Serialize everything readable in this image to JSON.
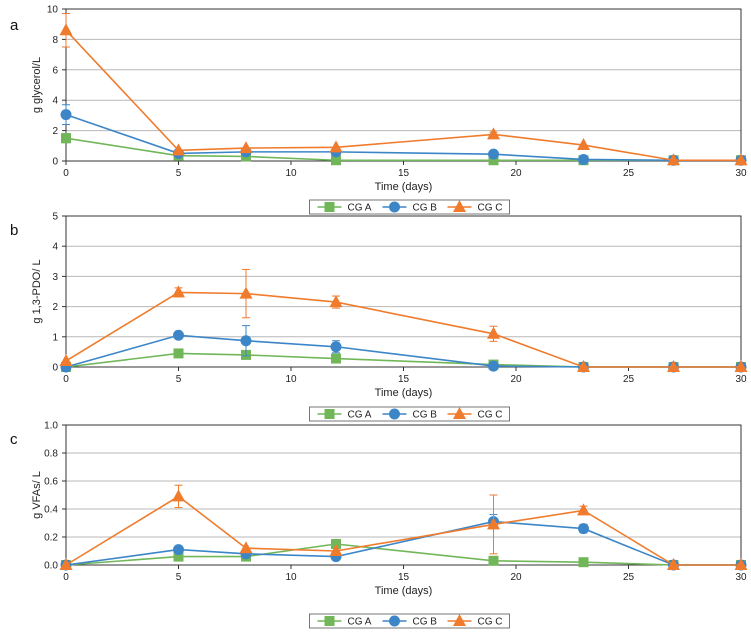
{
  "colors": {
    "CG A": "#71b759",
    "CG B": "#3c86c8",
    "CG C": "#f07b2c",
    "grid": "#b8b8b8",
    "axis": "#333333"
  },
  "chart_data": [
    {
      "type": "line",
      "panel_label": "a",
      "xlabel": "Time (days)",
      "ylabel": "g glycerol/L",
      "xlim": [
        0,
        30
      ],
      "ylim": [
        0,
        10
      ],
      "xticks": [
        0,
        5,
        10,
        15,
        20,
        25,
        30
      ],
      "yticks": [
        0,
        2,
        4,
        6,
        8,
        10
      ],
      "yticklabels": [
        "0",
        "2",
        "4",
        "6",
        "8",
        "10"
      ],
      "grid": true,
      "legend_position": "bottom",
      "series": [
        {
          "name": "CG A",
          "marker": "square",
          "x": [
            0,
            5,
            8,
            12,
            19,
            23,
            27,
            30
          ],
          "y": [
            1.5,
            0.35,
            0.3,
            0.05,
            0.05,
            0.05,
            0.05,
            0.05
          ],
          "err": [
            0.3,
            0,
            0,
            0,
            0,
            0,
            0,
            0
          ]
        },
        {
          "name": "CG B",
          "marker": "circle",
          "x": [
            0,
            5,
            8,
            12,
            19,
            23,
            27,
            30
          ],
          "y": [
            3.05,
            0.5,
            0.6,
            0.6,
            0.45,
            0.1,
            0.05,
            0.05
          ],
          "err": [
            0.65,
            0,
            0,
            0,
            0,
            0,
            0,
            0
          ]
        },
        {
          "name": "CG C",
          "marker": "triangle",
          "x": [
            0,
            5,
            8,
            12,
            19,
            23,
            27,
            30
          ],
          "y": [
            8.6,
            0.7,
            0.85,
            0.9,
            1.75,
            1.05,
            0.05,
            0.05
          ],
          "err": [
            1.1,
            0,
            0,
            0,
            0.15,
            0,
            0,
            0
          ]
        }
      ]
    },
    {
      "type": "line",
      "panel_label": "b",
      "xlabel": "Time (days)",
      "ylabel": "g 1,3-PDO/ L",
      "xlim": [
        0,
        30
      ],
      "ylim": [
        0,
        5
      ],
      "xticks": [
        0,
        5,
        10,
        15,
        20,
        25,
        30
      ],
      "yticks": [
        0,
        1,
        2,
        3,
        4,
        5
      ],
      "yticklabels": [
        "0",
        "1",
        "2",
        "3",
        "4",
        "5"
      ],
      "grid": true,
      "legend_position": "bottom",
      "series": [
        {
          "name": "CG A",
          "marker": "square",
          "x": [
            0,
            5,
            8,
            12,
            19,
            23,
            27,
            30
          ],
          "y": [
            0.0,
            0.45,
            0.4,
            0.28,
            0.08,
            0.0,
            0.0,
            0.0
          ],
          "err": [
            0,
            0,
            0,
            0,
            0,
            0,
            0,
            0
          ]
        },
        {
          "name": "CG B",
          "marker": "circle",
          "x": [
            0,
            5,
            8,
            12,
            19,
            23,
            27,
            30
          ],
          "y": [
            0.0,
            1.05,
            0.87,
            0.67,
            0.03,
            0.0,
            0.0,
            0.0
          ],
          "err": [
            0,
            0,
            0.5,
            0.2,
            0,
            0,
            0,
            0
          ]
        },
        {
          "name": "CG C",
          "marker": "triangle",
          "x": [
            0,
            5,
            8,
            12,
            19,
            23,
            27,
            30
          ],
          "y": [
            0.2,
            2.47,
            2.43,
            2.15,
            1.1,
            0.0,
            0.0,
            0.0
          ],
          "err": [
            0,
            0.15,
            0.8,
            0.2,
            0.25,
            0,
            0,
            0
          ]
        }
      ]
    },
    {
      "type": "line",
      "panel_label": "c",
      "xlabel": "Time (days)",
      "ylabel": "g VFAs/ L",
      "xlim": [
        0,
        30
      ],
      "ylim": [
        0,
        1.0
      ],
      "xticks": [
        0,
        5,
        10,
        15,
        20,
        25,
        30
      ],
      "yticks": [
        0,
        0.2,
        0.4,
        0.6,
        0.8,
        1.0
      ],
      "yticklabels": [
        "0.0",
        "0.2",
        "0.4",
        "0.6",
        "0.8",
        "1.0"
      ],
      "grid": true,
      "legend_position": "bottom",
      "series": [
        {
          "name": "CG A",
          "marker": "square",
          "x": [
            0,
            5,
            8,
            12,
            19,
            23,
            27,
            30
          ],
          "y": [
            0.0,
            0.06,
            0.06,
            0.15,
            0.03,
            0.02,
            0.0,
            0.0
          ],
          "err": [
            0,
            0,
            0,
            0,
            0,
            0,
            0,
            0
          ]
        },
        {
          "name": "CG B",
          "marker": "circle",
          "x": [
            0,
            5,
            8,
            12,
            19,
            23,
            27,
            30
          ],
          "y": [
            0.0,
            0.11,
            0.08,
            0.06,
            0.31,
            0.26,
            0.0,
            0.0
          ],
          "err": [
            0,
            0,
            0,
            0,
            0.05,
            0.03,
            0,
            0
          ]
        },
        {
          "name": "CG C",
          "marker": "triangle",
          "x": [
            0,
            5,
            8,
            12,
            19,
            23,
            27,
            30
          ],
          "y": [
            0.0,
            0.49,
            0.12,
            0.1,
            0.29,
            0.39,
            0.0,
            0.0
          ],
          "err": [
            0,
            0.08,
            0,
            0,
            0.21,
            0.03,
            0,
            0
          ]
        }
      ]
    }
  ]
}
